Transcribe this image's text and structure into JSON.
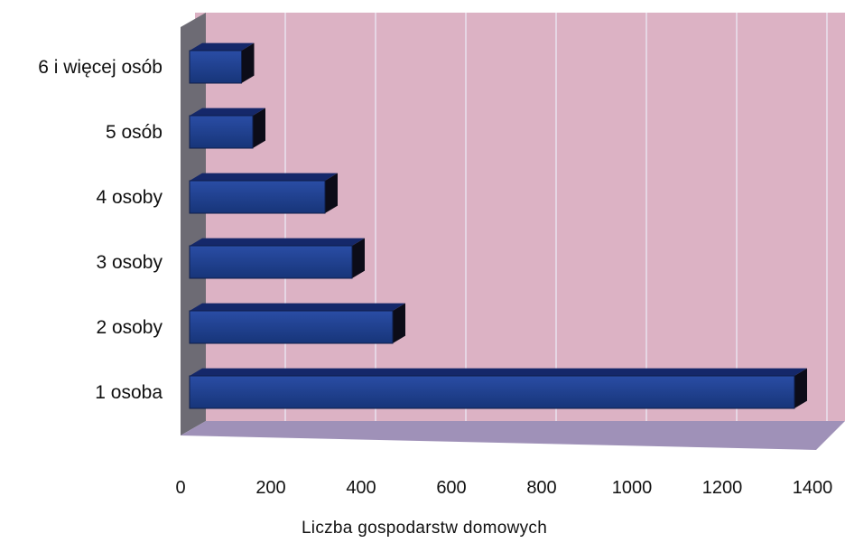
{
  "chart_data": {
    "type": "bar",
    "orientation": "horizontal",
    "style": "3d",
    "categories": [
      "1 osoba",
      "2 osoby",
      "3 osoby",
      "4 osoby",
      "5 osób",
      "6 i więcej osób"
    ],
    "values": [
      1360,
      470,
      380,
      320,
      160,
      135
    ],
    "xlabel": "Liczba gospodarstw domowych",
    "ylabel": "",
    "xlim": [
      0,
      1400
    ],
    "xticks": [
      "0",
      "200",
      "400",
      "600",
      "800",
      "1000",
      "1200",
      "1400"
    ],
    "grid": true,
    "legend": "none",
    "colors": {
      "bar": "#1f3f8f",
      "bar_top": "#15286a",
      "bar_side": "#0c0c18",
      "wall": "#dcb2c4",
      "floor": "#9f91b8",
      "left_wall": "#6d6b74",
      "gridline": "#e9e2ee"
    }
  }
}
